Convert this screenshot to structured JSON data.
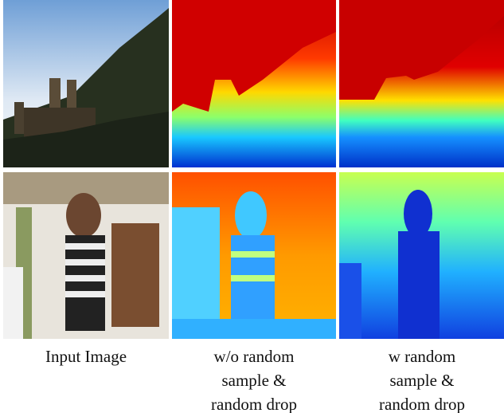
{
  "figure": {
    "captions": [
      [
        "Input Image"
      ],
      [
        "w/o random",
        "sample &",
        "random drop"
      ],
      [
        "w random",
        "sample &",
        "random drop"
      ]
    ]
  }
}
